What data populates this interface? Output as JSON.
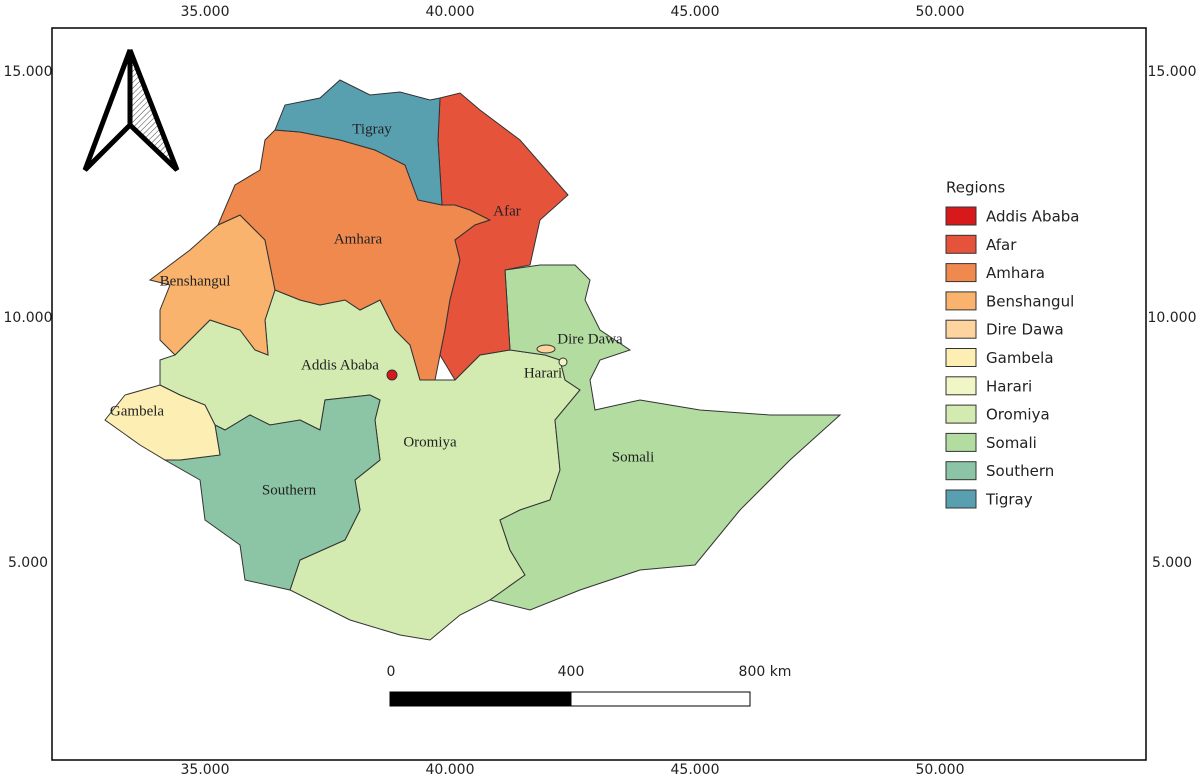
{
  "map": {
    "grid_labels": {
      "top": [
        "35.000",
        "40.000",
        "45.000",
        "50.000"
      ],
      "bottom": [
        "35.000",
        "40.000",
        "45.000",
        "50.000"
      ],
      "left": [
        "15.000",
        "10.000",
        "5.000"
      ],
      "right": [
        "15.000",
        "10.000",
        "5.000"
      ]
    },
    "region_labels": [
      "Tigray",
      "Afar",
      "Amhara",
      "Benshangul",
      "Addis Ababa",
      "Dire Dawa",
      "Harari",
      "Oromiya",
      "Somali",
      "Southern",
      "Gambela"
    ],
    "legend": {
      "title": "Regions",
      "items": [
        {
          "label": "Addis Ababa",
          "color": "#d7191c"
        },
        {
          "label": "Afar",
          "color": "#e5533b"
        },
        {
          "label": "Amhara",
          "color": "#f0894e"
        },
        {
          "label": "Benshangul",
          "color": "#f9b36d"
        },
        {
          "label": "Dire Dawa",
          "color": "#fdd49e"
        },
        {
          "label": "Gambela",
          "color": "#fdeeb3"
        },
        {
          "label": "Harari",
          "color": "#f1f6c6"
        },
        {
          "label": "Oromiya",
          "color": "#d3ebb0"
        },
        {
          "label": "Somali",
          "color": "#b3dca0"
        },
        {
          "label": "Southern",
          "color": "#8cc5a5"
        },
        {
          "label": "Tigray",
          "color": "#589fb0"
        }
      ]
    },
    "scale_bar": {
      "labels": [
        "0",
        "400",
        "800 km"
      ]
    }
  }
}
